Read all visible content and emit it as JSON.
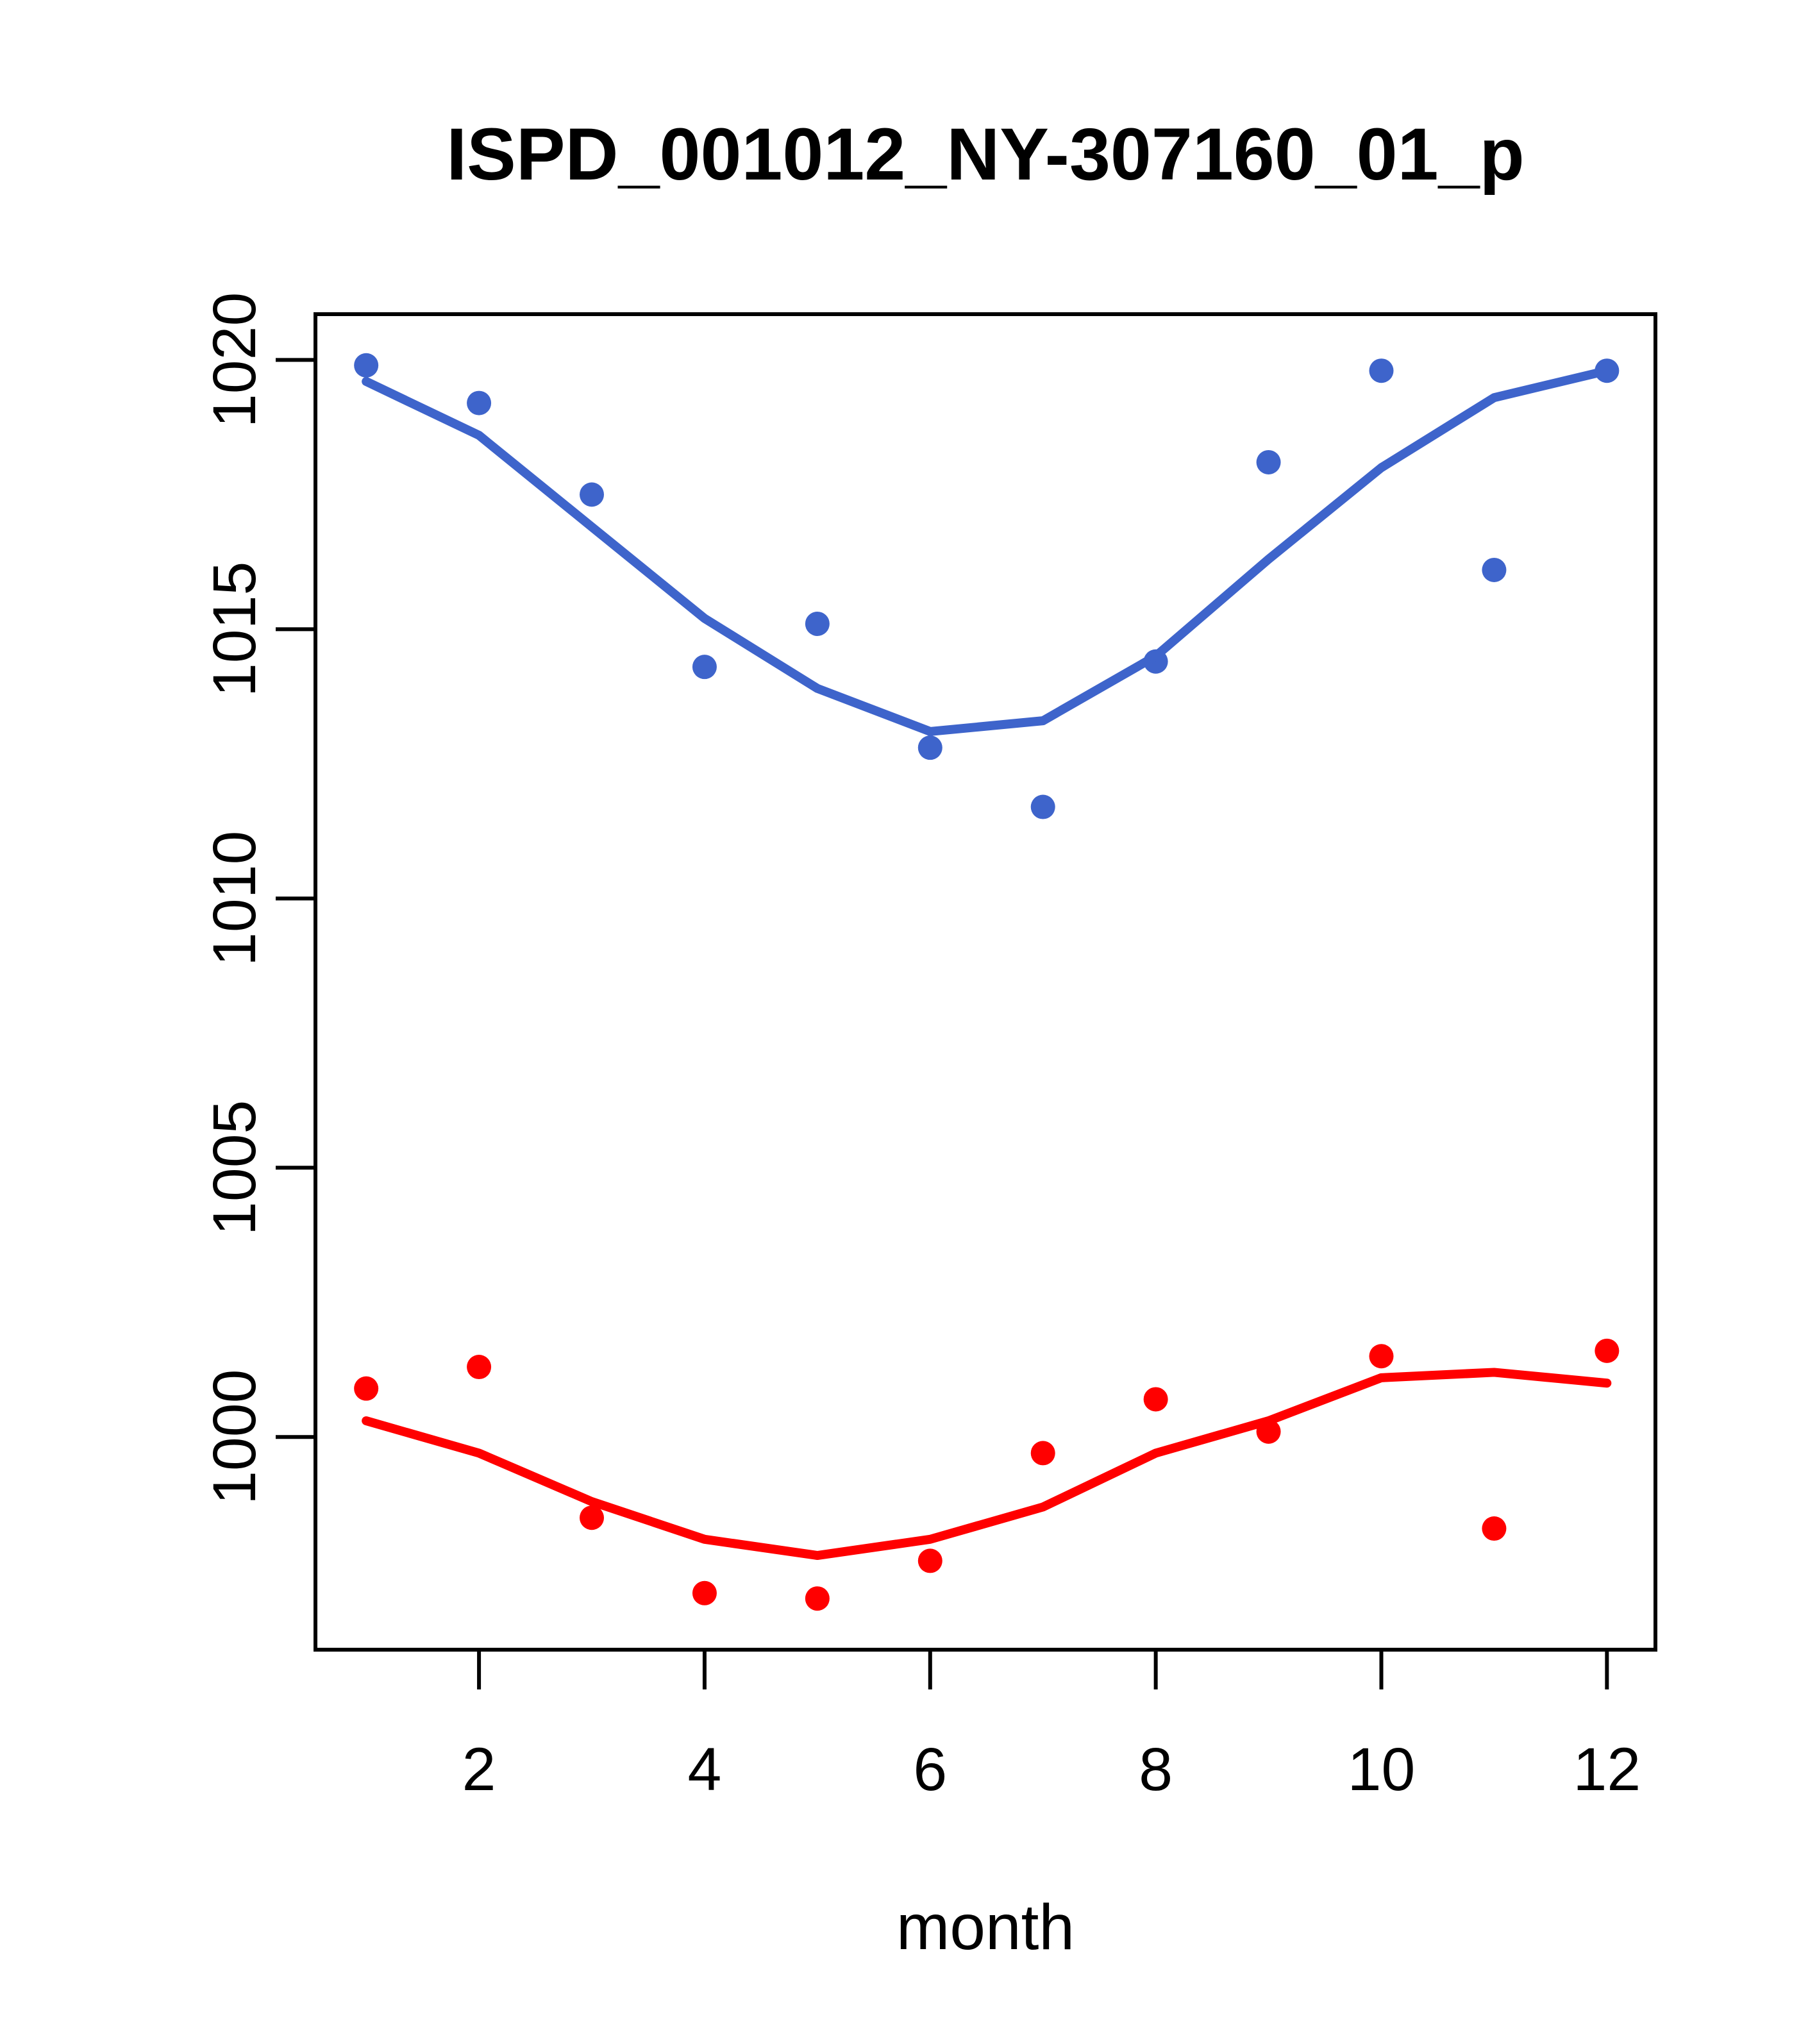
{
  "chart_data": {
    "type": "scatter",
    "title": "ISPD_001012_NY-307160_01_p",
    "xlabel": "month",
    "ylabel": "",
    "x": [
      1,
      2,
      3,
      4,
      5,
      6,
      7,
      8,
      9,
      10,
      11,
      12
    ],
    "xlim": [
      0.55,
      12.43
    ],
    "ylim": [
      996.05,
      1020.85
    ],
    "xticks": [
      2,
      4,
      6,
      8,
      10,
      12
    ],
    "yticks": [
      1000,
      1005,
      1010,
      1015,
      1020
    ],
    "grid": false,
    "legend_position": "none",
    "series": [
      {
        "name": "upper-observations",
        "kind": "points",
        "color": "#3E64CB",
        "y": [
          1019.9,
          1019.2,
          1017.5,
          1014.3,
          1015.1,
          1012.8,
          1011.7,
          1014.4,
          1018.1,
          1019.8,
          1016.1,
          1019.8
        ]
      },
      {
        "name": "upper-smooth-line",
        "kind": "line",
        "color": "#3E64CB",
        "y": [
          1019.6,
          1018.6,
          1016.9,
          1015.2,
          1013.9,
          1013.1,
          1013.3,
          1014.5,
          1016.3,
          1018.0,
          1019.3,
          1019.8
        ]
      },
      {
        "name": "lower-observations",
        "kind": "points",
        "color": "#FF0000",
        "y": [
          1000.9,
          1001.3,
          998.5,
          997.1,
          997.0,
          997.7,
          999.7,
          1000.7,
          1000.1,
          1001.5,
          998.3,
          1001.6
        ]
      },
      {
        "name": "lower-smooth-line",
        "kind": "line",
        "color": "#FF0000",
        "y": [
          1000.3,
          999.7,
          998.8,
          998.1,
          997.8,
          998.1,
          998.7,
          999.7,
          1000.3,
          1001.1,
          1001.2,
          1001.0
        ]
      }
    ]
  },
  "colors": {
    "background": "#FFFFFF",
    "axis": "#000000",
    "upper_series": "#3E64CB",
    "lower_series": "#FF0000"
  }
}
